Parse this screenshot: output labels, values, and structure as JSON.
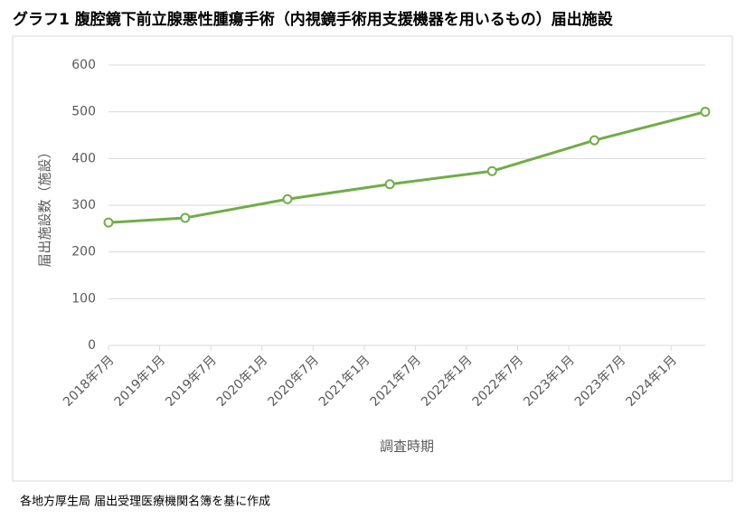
{
  "chart_data": {
    "type": "line",
    "title": "グラフ1 腹腔鏡下前立腺悪性腫瘍手術（内視鏡手術用支援機器を用いるもの）届出施設",
    "y_label": "届出施設数（施設）",
    "x_label": "調査時期",
    "source": "各地方厚生局 届出受理医療機関名簿を基に作成",
    "x": [
      "2018-07",
      "2019-04",
      "2020-04",
      "2021-04",
      "2022-04",
      "2023-04",
      "2024-05"
    ],
    "series": [
      {
        "name": "届出施設数",
        "color": "#70ad47",
        "values": [
          263,
          273,
          313,
          345,
          373,
          439,
          500
        ]
      }
    ],
    "xlim": [
      "2018-07",
      "2024-05"
    ],
    "xticks": [
      {
        "value": "2018-07",
        "label": "2018年7月"
      },
      {
        "value": "2019-01",
        "label": "2019年1月"
      },
      {
        "value": "2019-07",
        "label": "2019年7月"
      },
      {
        "value": "2020-01",
        "label": "2020年1月"
      },
      {
        "value": "2020-07",
        "label": "2020年7月"
      },
      {
        "value": "2021-01",
        "label": "2021年1月"
      },
      {
        "value": "2021-07",
        "label": "2021年7月"
      },
      {
        "value": "2022-01",
        "label": "2022年1月"
      },
      {
        "value": "2022-07",
        "label": "2022年7月"
      },
      {
        "value": "2023-01",
        "label": "2023年1月"
      },
      {
        "value": "2023-07",
        "label": "2023年7月"
      },
      {
        "value": "2024-01",
        "label": "2024年1月"
      }
    ],
    "ylim": [
      0,
      600
    ],
    "yticks": [
      0,
      100,
      200,
      300,
      400,
      500,
      600
    ],
    "grid": true
  }
}
